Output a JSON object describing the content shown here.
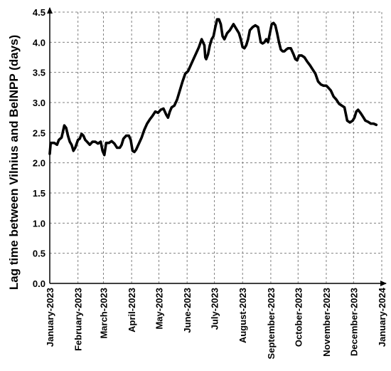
{
  "chart_data": {
    "type": "line",
    "title": "",
    "xlabel": "",
    "ylabel": "Lag time between Vilnius and BelNPP (days)",
    "ylim": [
      0,
      4.5
    ],
    "yticks": [
      "0.0",
      "0.5",
      "1.0",
      "1.5",
      "2.0",
      "2.5",
      "3.0",
      "3.5",
      "4.0",
      "4.5"
    ],
    "xlim": [
      "2023-01-01",
      "2024-01-01"
    ],
    "xticks": [
      {
        "date": "2023-01-01",
        "label": "January-2023"
      },
      {
        "date": "2023-02-01",
        "label": "February-2023"
      },
      {
        "date": "2023-03-01",
        "label": "March-2023"
      },
      {
        "date": "2023-04-01",
        "label": "April-2023"
      },
      {
        "date": "2023-05-01",
        "label": "May-2023"
      },
      {
        "date": "2023-06-01",
        "label": "June-2023"
      },
      {
        "date": "2023-07-01",
        "label": "July-2023"
      },
      {
        "date": "2023-08-01",
        "label": "August-2023"
      },
      {
        "date": "2023-09-01",
        "label": "September-2023"
      },
      {
        "date": "2023-10-01",
        "label": "October-2023"
      },
      {
        "date": "2023-11-01",
        "label": "November-2023"
      },
      {
        "date": "2023-12-01",
        "label": "December-2023"
      },
      {
        "date": "2024-01-01",
        "label": "January-2024"
      }
    ],
    "grid": true,
    "legend": "none",
    "line_color": "#000000",
    "series": [
      {
        "x": [
          "2023-01-01",
          "2023-01-02",
          "2023-01-03",
          "2023-01-06",
          "2023-01-09",
          "2023-01-11",
          "2023-01-14",
          "2023-01-17",
          "2023-01-19",
          "2023-01-21",
          "2023-01-23",
          "2023-01-25",
          "2023-01-27",
          "2023-01-29",
          "2023-02-01",
          "2023-02-03",
          "2023-02-05",
          "2023-02-07",
          "2023-02-09",
          "2023-02-11",
          "2023-02-14",
          "2023-02-17",
          "2023-02-20",
          "2023-02-23",
          "2023-02-26",
          "2023-02-28",
          "2023-03-02",
          "2023-03-04",
          "2023-03-07",
          "2023-03-10",
          "2023-03-13",
          "2023-03-16",
          "2023-03-19",
          "2023-03-21",
          "2023-03-23",
          "2023-03-26",
          "2023-03-29",
          "2023-03-31",
          "2023-04-02",
          "2023-04-04",
          "2023-04-06",
          "2023-04-09",
          "2023-04-12",
          "2023-04-15",
          "2023-04-18",
          "2023-04-21",
          "2023-04-24",
          "2023-04-27",
          "2023-04-30",
          "2023-05-03",
          "2023-05-06",
          "2023-05-09",
          "2023-05-11",
          "2023-05-13",
          "2023-05-15",
          "2023-05-18",
          "2023-05-21",
          "2023-05-24",
          "2023-05-27",
          "2023-05-30",
          "2023-06-02",
          "2023-06-05",
          "2023-06-08",
          "2023-06-11",
          "2023-06-14",
          "2023-06-17",
          "2023-06-20",
          "2023-06-21",
          "2023-06-22",
          "2023-06-24",
          "2023-06-26",
          "2023-06-28",
          "2023-06-30",
          "2023-07-02",
          "2023-07-04",
          "2023-07-06",
          "2023-07-08",
          "2023-07-10",
          "2023-07-12",
          "2023-07-15",
          "2023-07-18",
          "2023-07-20",
          "2023-07-22",
          "2023-07-24",
          "2023-07-26",
          "2023-07-28",
          "2023-07-30",
          "2023-08-01",
          "2023-08-03",
          "2023-08-05",
          "2023-08-07",
          "2023-08-09",
          "2023-08-12",
          "2023-08-15",
          "2023-08-18",
          "2023-08-21",
          "2023-08-23",
          "2023-08-25",
          "2023-08-27",
          "2023-08-29",
          "2023-08-31",
          "2023-09-02",
          "2023-09-04",
          "2023-09-06",
          "2023-09-08",
          "2023-09-10",
          "2023-09-12",
          "2023-09-14",
          "2023-09-16",
          "2023-09-18",
          "2023-09-20",
          "2023-09-23",
          "2023-09-26",
          "2023-09-28",
          "2023-09-30",
          "2023-10-02",
          "2023-10-05",
          "2023-10-08",
          "2023-10-11",
          "2023-10-14",
          "2023-10-17",
          "2023-10-20",
          "2023-10-23",
          "2023-10-26",
          "2023-10-29",
          "2023-11-01",
          "2023-11-03",
          "2023-11-06",
          "2023-11-09",
          "2023-11-12",
          "2023-11-15",
          "2023-11-18",
          "2023-11-21",
          "2023-11-24",
          "2023-11-27",
          "2023-11-30",
          "2023-12-02",
          "2023-12-04",
          "2023-12-06",
          "2023-12-09",
          "2023-12-12",
          "2023-12-14",
          "2023-12-17",
          "2023-12-20",
          "2023-12-23",
          "2023-12-26"
        ],
        "y": [
          2.15,
          2.33,
          2.33,
          2.33,
          2.3,
          2.38,
          2.42,
          2.62,
          2.58,
          2.45,
          2.35,
          2.3,
          2.2,
          2.25,
          2.38,
          2.4,
          2.48,
          2.45,
          2.38,
          2.35,
          2.3,
          2.35,
          2.35,
          2.32,
          2.35,
          2.2,
          2.13,
          2.33,
          2.33,
          2.36,
          2.32,
          2.25,
          2.25,
          2.3,
          2.4,
          2.45,
          2.45,
          2.38,
          2.2,
          2.18,
          2.22,
          2.32,
          2.42,
          2.55,
          2.65,
          2.72,
          2.78,
          2.85,
          2.83,
          2.88,
          2.9,
          2.8,
          2.75,
          2.85,
          2.92,
          2.95,
          3.05,
          3.2,
          3.35,
          3.48,
          3.52,
          3.62,
          3.72,
          3.82,
          3.92,
          4.05,
          3.95,
          3.75,
          3.72,
          3.8,
          3.95,
          4.05,
          4.1,
          4.25,
          4.38,
          4.38,
          4.3,
          4.1,
          4.05,
          4.15,
          4.2,
          4.25,
          4.3,
          4.25,
          4.2,
          4.15,
          4.05,
          3.92,
          3.9,
          3.95,
          4.05,
          4.2,
          4.25,
          4.28,
          4.25,
          4.0,
          3.98,
          4.0,
          4.05,
          4.0,
          4.15,
          4.3,
          4.32,
          4.28,
          4.15,
          4.0,
          3.88,
          3.85,
          3.85,
          3.88,
          3.9,
          3.9,
          3.8,
          3.72,
          3.7,
          3.78,
          3.78,
          3.75,
          3.68,
          3.62,
          3.55,
          3.48,
          3.35,
          3.3,
          3.28,
          3.28,
          3.25,
          3.2,
          3.1,
          3.05,
          2.98,
          2.95,
          2.92,
          2.7,
          2.67,
          2.7,
          2.75,
          2.85,
          2.88,
          2.82,
          2.75,
          2.7,
          2.68,
          2.65,
          2.65,
          2.63
        ]
      }
    ]
  }
}
